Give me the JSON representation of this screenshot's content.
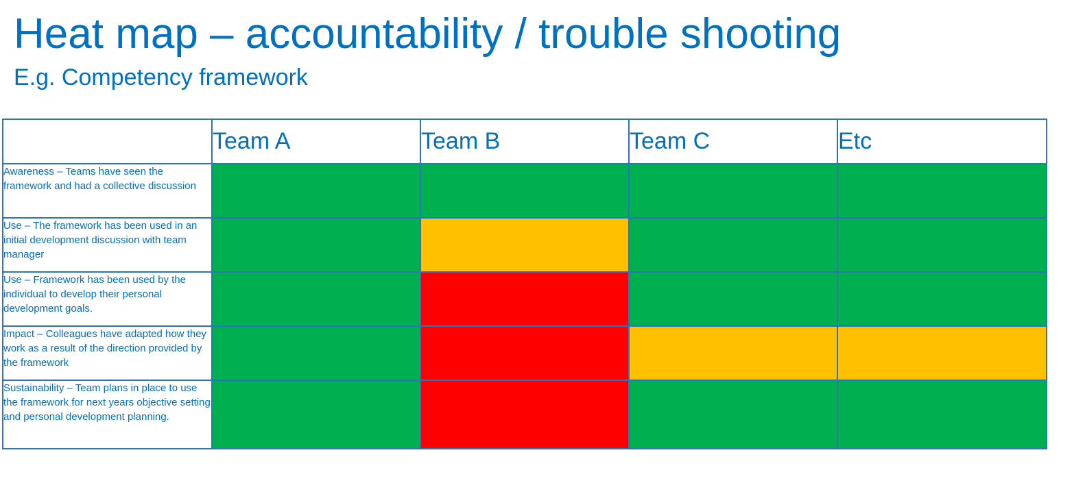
{
  "title": "Heat map – accountability / trouble shooting",
  "subtitle": "E.g. Competency framework",
  "colors": {
    "green": "#00b050",
    "amber": "#ffc000",
    "red": "#ff0000",
    "text": "#0070c0",
    "border": "#2e75b6"
  },
  "chart_data": {
    "type": "heatmap",
    "columns": [
      "Team A",
      "Team B",
      "Team C",
      "Etc"
    ],
    "rows": [
      "Awareness – Teams have seen the framework and had a collective discussion",
      "Use – The framework has been used in an initial development discussion with team manager",
      "Use – Framework has been used by the individual to develop their personal development goals.",
      "Impact – Colleagues have adapted how they work as a result of the direction provided by the framework",
      "Sustainability – Team plans in place to use the framework for next years objective setting and personal development planning."
    ],
    "values": [
      [
        "green",
        "green",
        "green",
        "green"
      ],
      [
        "green",
        "amber",
        "green",
        "green"
      ],
      [
        "green",
        "red",
        "green",
        "green"
      ],
      [
        "green",
        "red",
        "amber",
        "amber"
      ],
      [
        "green",
        "red",
        "green",
        "green"
      ]
    ]
  }
}
